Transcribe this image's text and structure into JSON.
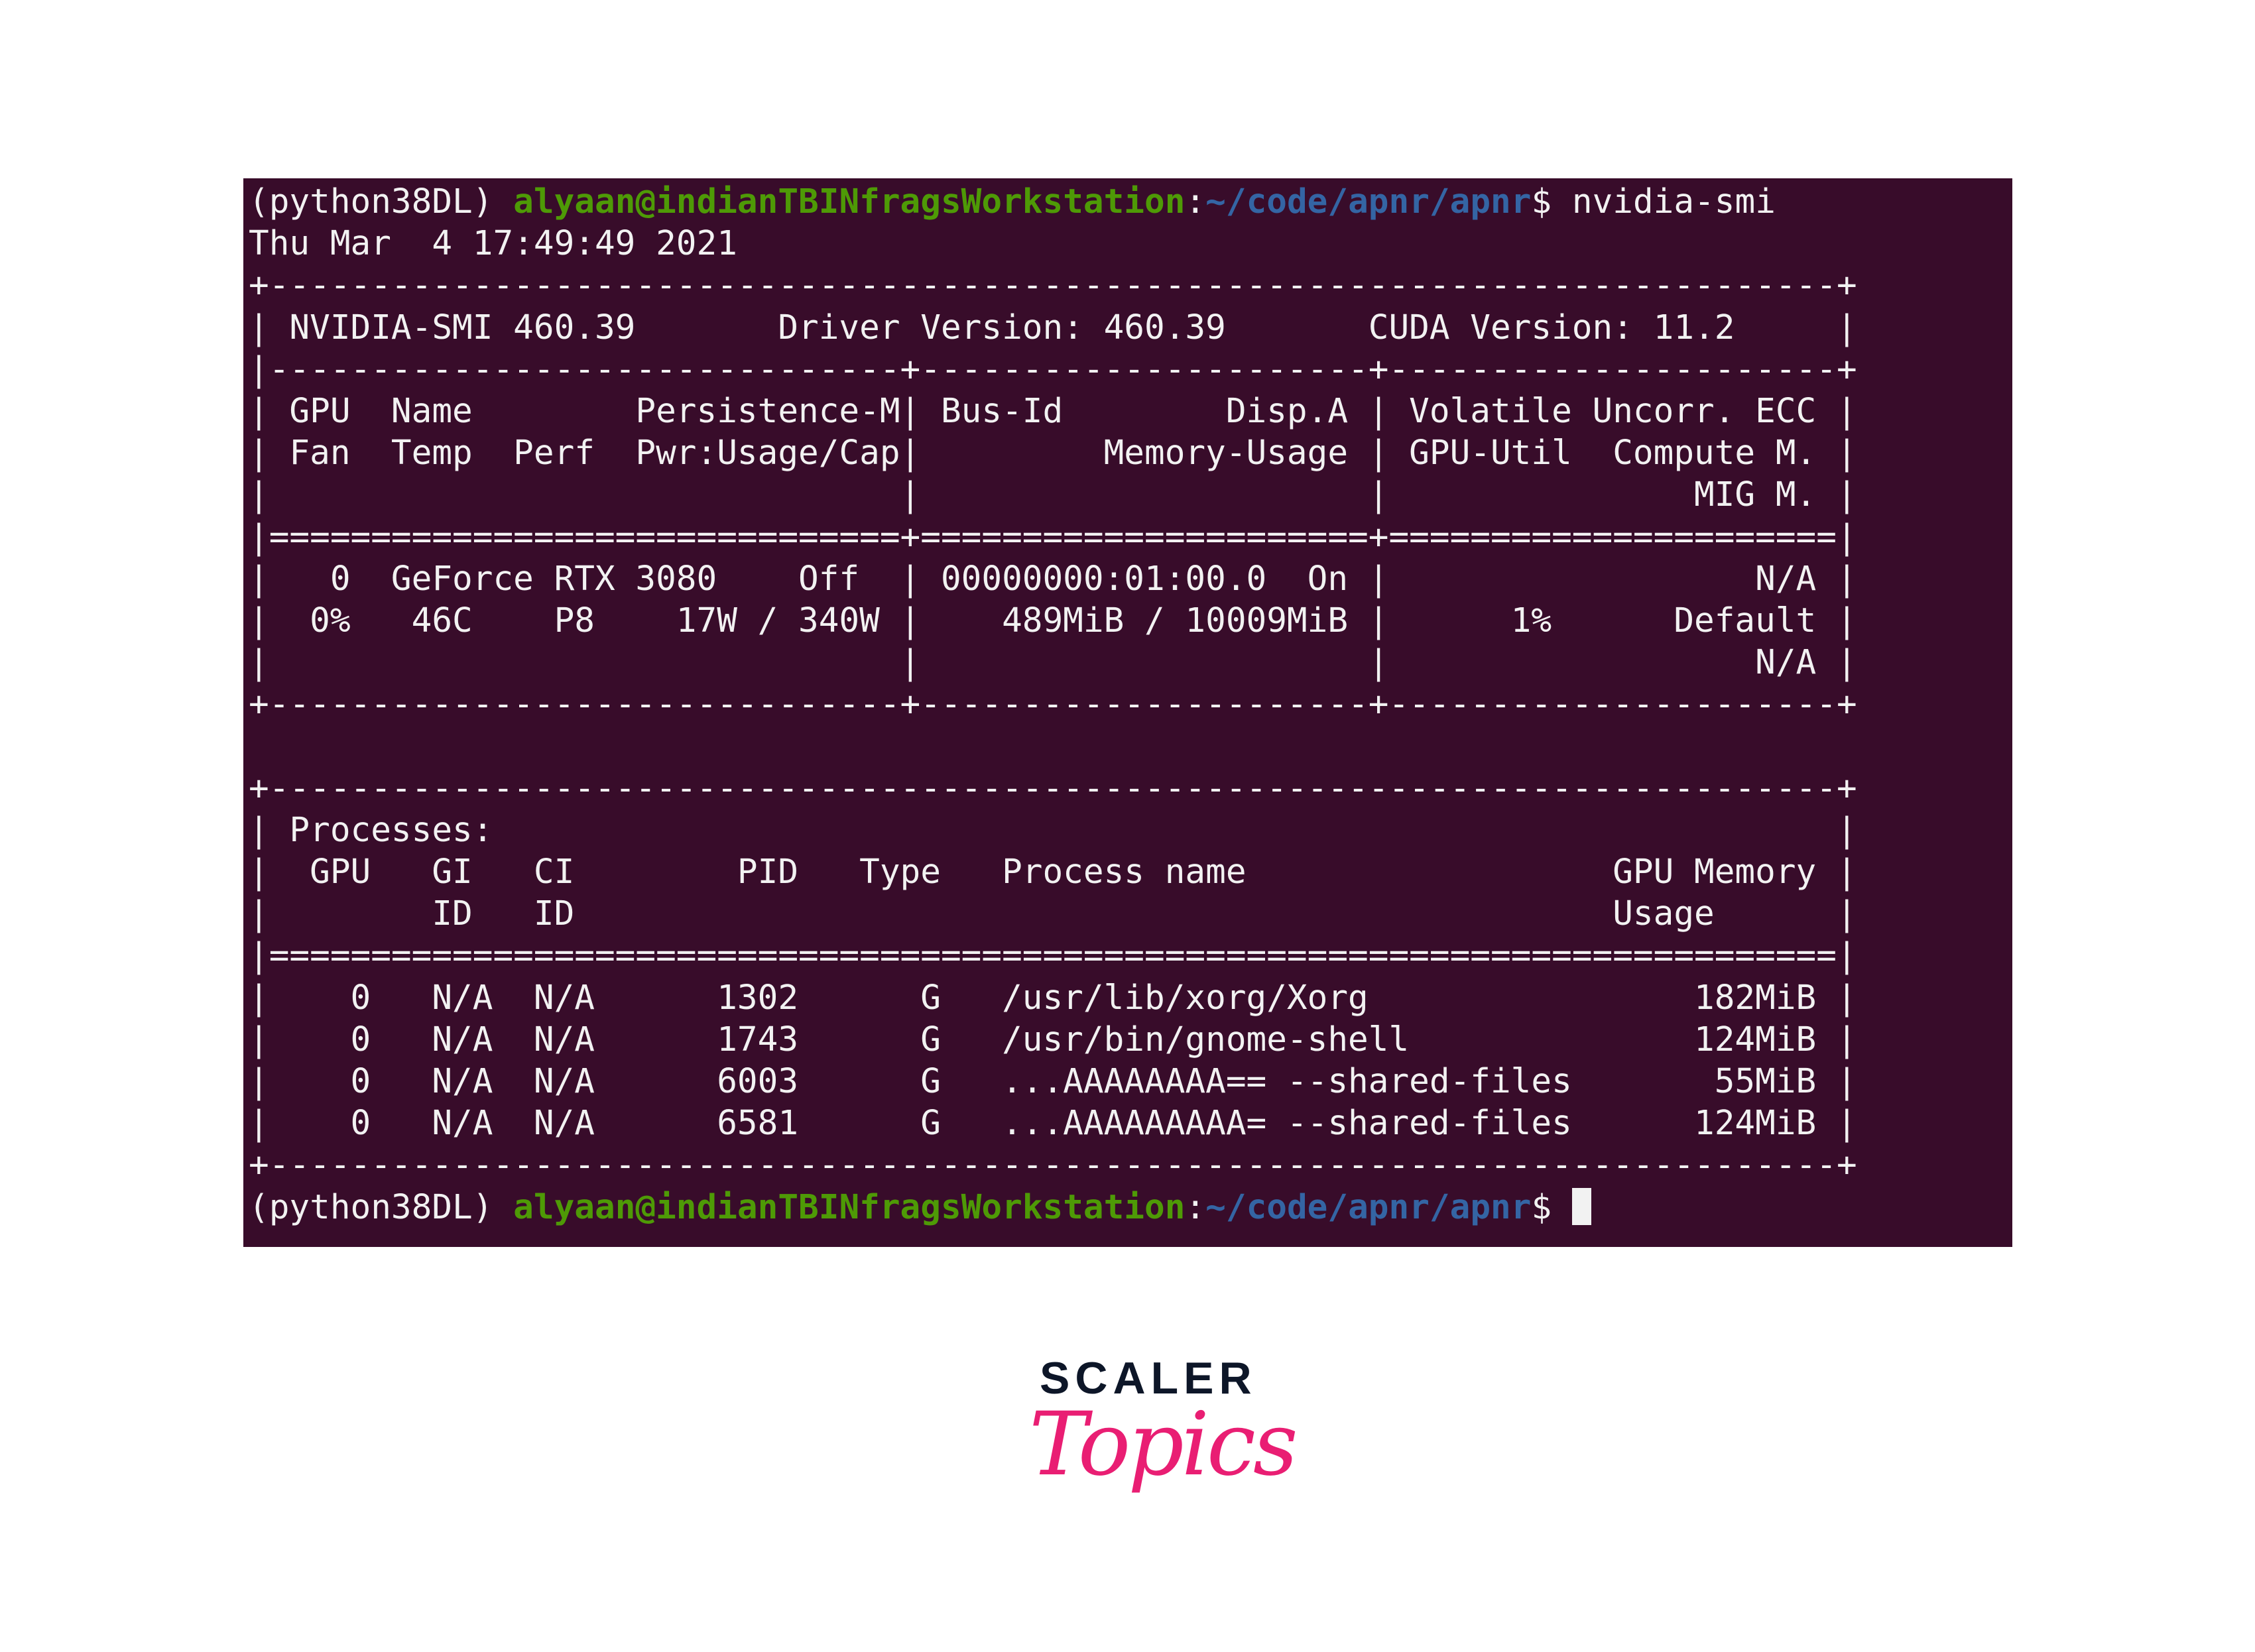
{
  "colors": {
    "terminal_background": "#380c2a",
    "text": "#f2f2f2",
    "prompt_user_host": "#4e9a06",
    "prompt_path": "#3465a4",
    "logo_dark": "#0d1628",
    "logo_pink": "#e91e73"
  },
  "prompt": {
    "env": "(python38DL) ",
    "user_host": "alyaan@indianTBINfragsWorkstation",
    "colon": ":",
    "path": "~/code/apnr/apnr",
    "dollar": "$ "
  },
  "command": "nvidia-smi",
  "timestamp": "Thu Mar  4 17:49:49 2021",
  "gpu_table_lines": [
    "+-----------------------------------------------------------------------------+",
    "| NVIDIA-SMI 460.39       Driver Version: 460.39       CUDA Version: 11.2     |",
    "|-------------------------------+----------------------+----------------------+",
    "| GPU  Name        Persistence-M| Bus-Id        Disp.A | Volatile Uncorr. ECC |",
    "| Fan  Temp  Perf  Pwr:Usage/Cap|         Memory-Usage | GPU-Util  Compute M. |",
    "|                               |                      |               MIG M. |",
    "|===============================+======================+======================|",
    "|   0  GeForce RTX 3080    Off  | 00000000:01:00.0  On |                  N/A |",
    "|  0%   46C    P8    17W / 340W |    489MiB / 10009MiB |      1%      Default |",
    "|                               |                      |                  N/A |",
    "+-------------------------------+----------------------+----------------------+"
  ],
  "process_table_lines": [
    "+-----------------------------------------------------------------------------+",
    "| Processes:                                                                  |",
    "|  GPU   GI   CI        PID   Type   Process name                  GPU Memory |",
    "|        ID   ID                                                   Usage      |",
    "|=============================================================================|",
    "|    0   N/A  N/A      1302      G   /usr/lib/xorg/Xorg                182MiB |",
    "|    0   N/A  N/A      1743      G   /usr/bin/gnome-shell              124MiB |",
    "|    0   N/A  N/A      6003      G   ...AAAAAAAA== --shared-files       55MiB |",
    "|    0   N/A  N/A      6581      G   ...AAAAAAAAA= --shared-files      124MiB |",
    "+-----------------------------------------------------------------------------+"
  ],
  "logo": {
    "brand": "SCALER",
    "product": "Topics"
  }
}
